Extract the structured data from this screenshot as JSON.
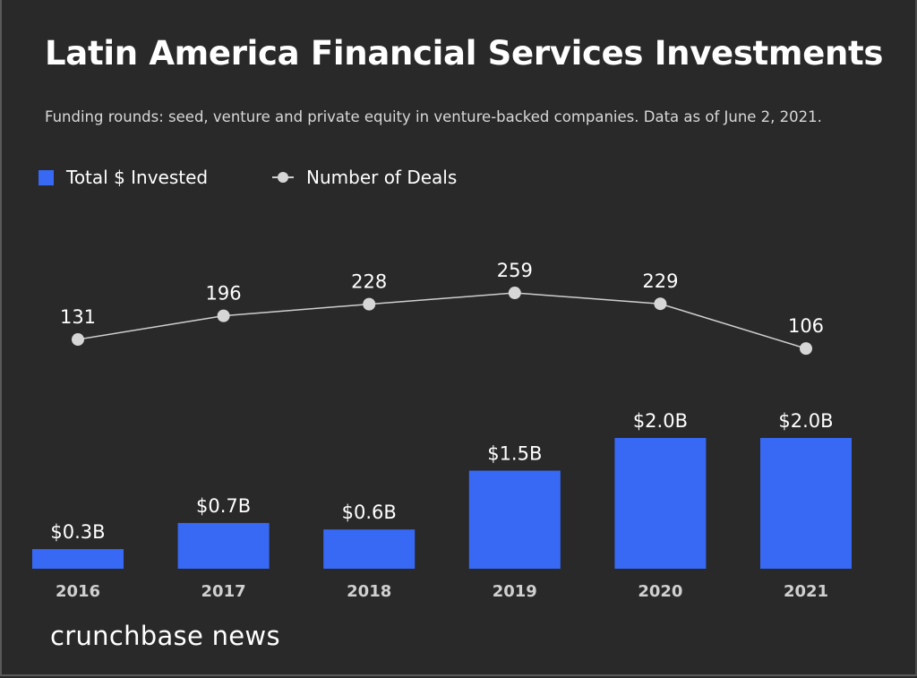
{
  "chart_data": {
    "type": "bar",
    "title": "Latin America Financial Services Investments",
    "subtitle": "Funding rounds: seed, venture and private equity in venture-backed companies. Data as of June 2, 2021.",
    "categories": [
      "2016",
      "2017",
      "2018",
      "2019",
      "2020",
      "2021"
    ],
    "series": [
      {
        "name": "Total $ Invested",
        "type": "bar",
        "values": [
          0.3,
          0.7,
          0.6,
          1.5,
          2.0,
          2.0
        ],
        "labels": [
          "$0.3B",
          "$0.7B",
          "$0.6B",
          "$1.5B",
          "$2.0B",
          "$2.0B"
        ],
        "color": "#3769f5"
      },
      {
        "name": "Number of Deals",
        "type": "line",
        "values": [
          131,
          196,
          228,
          259,
          229,
          106
        ],
        "labels": [
          "131",
          "196",
          "228",
          "259",
          "229",
          "106"
        ],
        "color": "#d6d6d6"
      }
    ],
    "legend": "top-left",
    "grid": false
  },
  "branding": "crunchbase news",
  "colors": {
    "background": "#292929",
    "bar": "#3769f5",
    "line": "#d6d6d6"
  }
}
